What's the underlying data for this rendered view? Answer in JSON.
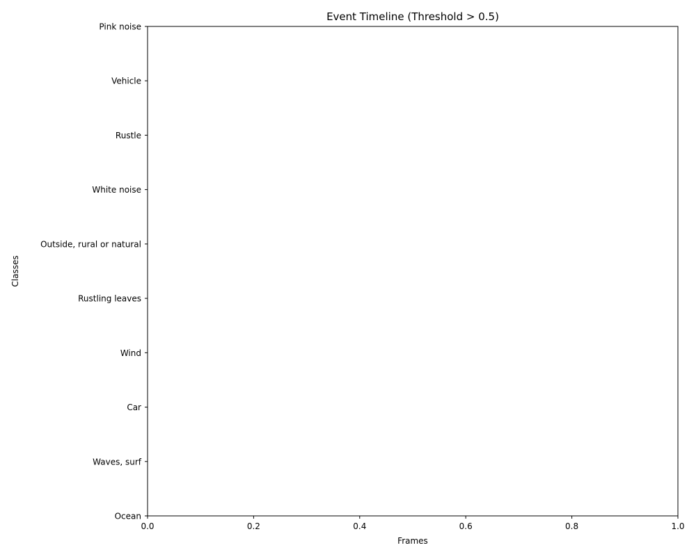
{
  "chart_data": {
    "type": "timeline",
    "title": "Event Timeline (Threshold > 0.5)",
    "xlabel": "Frames",
    "ylabel": "Classes",
    "xlim": [
      0.0,
      1.0
    ],
    "xticks": [
      0.0,
      0.2,
      0.4,
      0.6,
      0.8,
      1.0
    ],
    "xtick_labels": [
      "0.0",
      "0.2",
      "0.4",
      "0.6",
      "0.8",
      "1.0"
    ],
    "categories_bottom_to_top": [
      "Ocean",
      "Waves, surf",
      "Car",
      "Wind",
      "Rustling leaves",
      "Outside, rural or natural",
      "White noise",
      "Rustle",
      "Vehicle",
      "Pink noise"
    ],
    "events": [],
    "grid": false,
    "legend": "none"
  }
}
